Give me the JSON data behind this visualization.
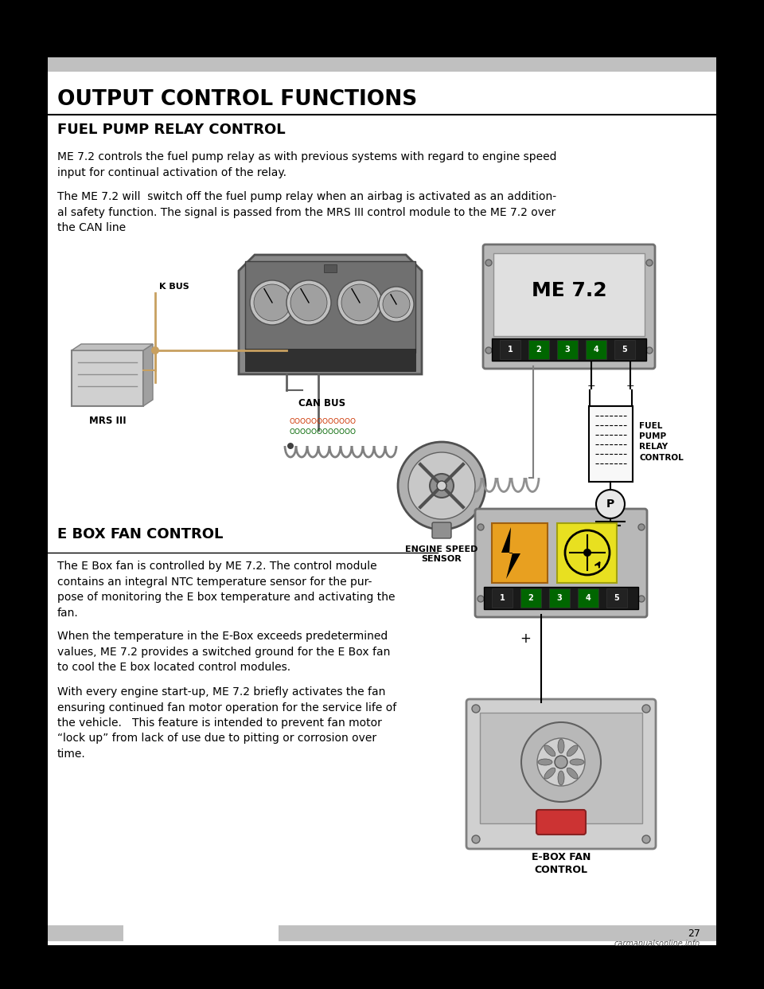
{
  "page_bg": "#000000",
  "content_bg": "#ffffff",
  "bar_color": "#c0c0c0",
  "title": "OUTPUT CONTROL FUNCTIONS",
  "section1_title": "FUEL PUMP RELAY CONTROL",
  "section1_para1": "ME 7.2 controls the fuel pump relay as with previous systems with regard to engine speed\ninput for continual activation of the relay.",
  "section1_para2": "The ME 7.2 will  switch off the fuel pump relay when an airbag is activated as an addition-\nal safety function. The signal is passed from the MRS III control module to the ME 7.2 over\nthe CAN line",
  "section2_title": "E BOX FAN CONTROL",
  "section2_para1": "The E Box fan is controlled by ME 7.2. The control module\ncontains an integral NTC temperature sensor for the pur-\npose of monitoring the E box temperature and activating the\nfan.",
  "section2_para2": "When the temperature in the E-Box exceeds predetermined\nvalues, ME 7.2 provides a switched ground for the E Box fan\nto cool the E box located control modules.",
  "section2_para3": "With every engine start-up, ME 7.2 briefly activates the fan\nensuring continued fan motor operation for the service life of\nthe vehicle.   This feature is intended to prevent fan motor\n“lock up” from lack of use due to pitting or corrosion over\ntime.",
  "page_number": "27",
  "watermark": "carmanualsonline.info",
  "label_me72": "ME 7.2",
  "label_kbus": "K BUS",
  "label_mrsiii": "MRS III",
  "label_canbus": "CAN BUS",
  "label_engine_speed": "ENGINE SPEED\nSENSOR",
  "label_fuel_pump": "FUEL\nPUMP\nRELAY\nCONTROL",
  "label_ebox_fan": "E-BOX FAN\nCONTROL",
  "pin_colors": [
    "#222222",
    "#006600",
    "#006600",
    "#006600",
    "#222222"
  ],
  "pin_nums": [
    "1",
    "2",
    "3",
    "4",
    "5"
  ]
}
